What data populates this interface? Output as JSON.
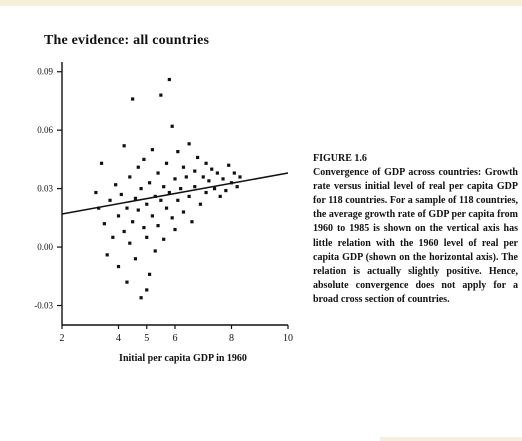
{
  "page": {
    "colors": {
      "paper": "#ffffff",
      "ink": "#111111",
      "edge_tint": "#f6f0da"
    }
  },
  "figure": {
    "title": "The evidence: all countries",
    "caption_label": "FIGURE 1.6",
    "caption_text": "Convergence of GDP across countries: Growth rate versus initial level of real per capita GDP for 118 countries. For a sample of 118 countries, the average growth rate of GDP per capita from 1960 to 1985 is shown on the vertical axis has little relation with the 1960 level of real per capita GDP (shown on the horizontal axis). The relation is actually slightly positive. Hence, absolute convergence does not apply for a broad cross section of countries."
  },
  "chart_data": {
    "type": "scatter",
    "title": "The evidence: all countries",
    "xlabel": "Initial per capita GDP in 1960",
    "ylabel": "",
    "xlim": [
      2,
      10
    ],
    "ylim": [
      -0.04,
      0.095
    ],
    "x_ticks": [
      {
        "value": 2,
        "label": "2"
      },
      {
        "value": 4,
        "label": "4"
      },
      {
        "value": 5,
        "label": "5"
      },
      {
        "value": 6,
        "label": "6"
      },
      {
        "value": 8,
        "label": "8"
      },
      {
        "value": 10,
        "label": "10"
      }
    ],
    "y_ticks": [
      {
        "value": 0.09,
        "label": "0.09"
      },
      {
        "value": 0.06,
        "label": "0.06"
      },
      {
        "value": 0.03,
        "label": "0.03"
      },
      {
        "value": 0.0,
        "label": "0.00"
      },
      {
        "value": -0.03,
        "label": "-0.03"
      }
    ],
    "grid": false,
    "trend_line": {
      "x": [
        2.0,
        10.0
      ],
      "y": [
        0.017,
        0.038
      ]
    },
    "points": [
      {
        "x": 3.2,
        "y": 0.028
      },
      {
        "x": 3.3,
        "y": 0.02
      },
      {
        "x": 3.4,
        "y": 0.043
      },
      {
        "x": 3.5,
        "y": 0.012
      },
      {
        "x": 3.6,
        "y": -0.004
      },
      {
        "x": 3.7,
        "y": 0.024
      },
      {
        "x": 3.8,
        "y": 0.005
      },
      {
        "x": 3.9,
        "y": 0.032
      },
      {
        "x": 4.0,
        "y": 0.016
      },
      {
        "x": 4.0,
        "y": -0.01
      },
      {
        "x": 4.1,
        "y": 0.027
      },
      {
        "x": 4.2,
        "y": 0.052
      },
      {
        "x": 4.2,
        "y": 0.008
      },
      {
        "x": 4.3,
        "y": -0.018
      },
      {
        "x": 4.3,
        "y": 0.02
      },
      {
        "x": 4.4,
        "y": 0.036
      },
      {
        "x": 4.4,
        "y": 0.002
      },
      {
        "x": 4.5,
        "y": 0.076
      },
      {
        "x": 4.5,
        "y": 0.013
      },
      {
        "x": 4.6,
        "y": 0.025
      },
      {
        "x": 4.6,
        "y": -0.006
      },
      {
        "x": 4.7,
        "y": 0.041
      },
      {
        "x": 4.7,
        "y": 0.019
      },
      {
        "x": 4.8,
        "y": -0.026
      },
      {
        "x": 4.8,
        "y": 0.03
      },
      {
        "x": 4.9,
        "y": 0.01
      },
      {
        "x": 4.9,
        "y": 0.045
      },
      {
        "x": 5.0,
        "y": -0.022
      },
      {
        "x": 5.0,
        "y": 0.022
      },
      {
        "x": 5.0,
        "y": 0.005
      },
      {
        "x": 5.1,
        "y": 0.033
      },
      {
        "x": 5.1,
        "y": -0.014
      },
      {
        "x": 5.2,
        "y": 0.016
      },
      {
        "x": 5.2,
        "y": 0.05
      },
      {
        "x": 5.3,
        "y": 0.026
      },
      {
        "x": 5.3,
        "y": -0.002
      },
      {
        "x": 5.4,
        "y": 0.038
      },
      {
        "x": 5.4,
        "y": 0.011
      },
      {
        "x": 5.5,
        "y": 0.078
      },
      {
        "x": 5.5,
        "y": 0.024
      },
      {
        "x": 5.6,
        "y": 0.031
      },
      {
        "x": 5.6,
        "y": 0.004
      },
      {
        "x": 5.7,
        "y": 0.043
      },
      {
        "x": 5.7,
        "y": 0.02
      },
      {
        "x": 5.8,
        "y": 0.086
      },
      {
        "x": 5.8,
        "y": 0.028
      },
      {
        "x": 5.9,
        "y": 0.015
      },
      {
        "x": 5.9,
        "y": 0.062
      },
      {
        "x": 6.0,
        "y": 0.035
      },
      {
        "x": 6.0,
        "y": 0.009
      },
      {
        "x": 6.1,
        "y": 0.024
      },
      {
        "x": 6.1,
        "y": 0.049
      },
      {
        "x": 6.2,
        "y": 0.03
      },
      {
        "x": 6.3,
        "y": 0.041
      },
      {
        "x": 6.3,
        "y": 0.018
      },
      {
        "x": 6.4,
        "y": 0.036
      },
      {
        "x": 6.5,
        "y": 0.026
      },
      {
        "x": 6.5,
        "y": 0.053
      },
      {
        "x": 6.6,
        "y": 0.013
      },
      {
        "x": 6.7,
        "y": 0.039
      },
      {
        "x": 6.7,
        "y": 0.031
      },
      {
        "x": 6.8,
        "y": 0.046
      },
      {
        "x": 6.9,
        "y": 0.022
      },
      {
        "x": 7.0,
        "y": 0.036
      },
      {
        "x": 7.1,
        "y": 0.028
      },
      {
        "x": 7.1,
        "y": 0.043
      },
      {
        "x": 7.2,
        "y": 0.034
      },
      {
        "x": 7.3,
        "y": 0.04
      },
      {
        "x": 7.4,
        "y": 0.03
      },
      {
        "x": 7.5,
        "y": 0.038
      },
      {
        "x": 7.6,
        "y": 0.026
      },
      {
        "x": 7.7,
        "y": 0.035
      },
      {
        "x": 7.8,
        "y": 0.029
      },
      {
        "x": 7.9,
        "y": 0.042
      },
      {
        "x": 8.0,
        "y": 0.033
      },
      {
        "x": 8.1,
        "y": 0.038
      },
      {
        "x": 8.2,
        "y": 0.031
      },
      {
        "x": 8.3,
        "y": 0.036
      }
    ]
  }
}
